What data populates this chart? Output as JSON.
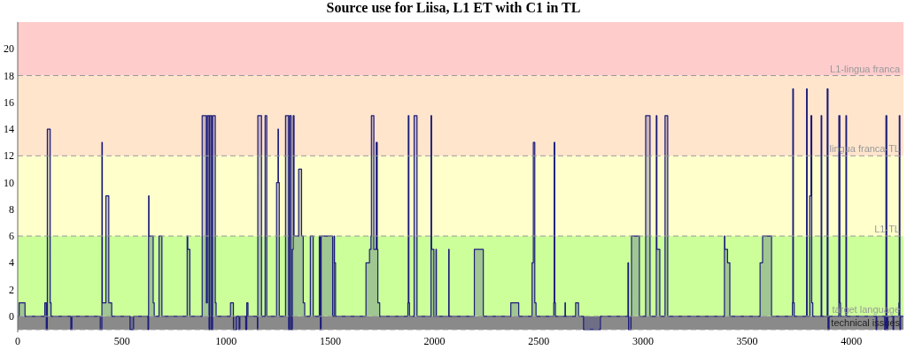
{
  "chart_data": {
    "type": "area",
    "title": "Source use for Liisa, L1 ET with C1 in TL",
    "xlim": [
      0,
      4250
    ],
    "xticks": [
      0,
      500,
      1000,
      1500,
      2000,
      2500,
      3000,
      3500,
      4000
    ],
    "ylim": [
      -1.2,
      22
    ],
    "yticks": [
      0,
      2,
      4,
      6,
      8,
      10,
      12,
      14,
      16,
      18,
      20
    ],
    "series": [
      {
        "color": "#1c1c7a",
        "x": [
          0,
          7,
          7,
          35,
          35,
          130,
          130,
          137,
          137,
          142,
          142,
          156,
          156,
          160,
          160,
          255,
          255,
          260,
          260,
          396,
          396,
          404,
          404,
          406,
          406,
          423,
          423,
          437,
          437,
          451,
          451,
          539,
          539,
          556,
          556,
          625,
          625,
          628,
          628,
          630,
          630,
          650,
          650,
          655,
          655,
          678,
          678,
          692,
          692,
          813,
          813,
          816,
          816,
          826,
          826,
          885,
          885,
          905,
          905,
          910,
          910,
          918,
          918,
          922,
          922,
          930,
          930,
          935,
          935,
          948,
          948,
          952,
          952,
          1021,
          1021,
          1035,
          1035,
          1050,
          1050,
          1062,
          1062,
          1066,
          1066,
          1094,
          1094,
          1099,
          1099,
          1105,
          1105,
          1150,
          1150,
          1152,
          1152,
          1170,
          1170,
          1187,
          1187,
          1195,
          1195,
          1242,
          1242,
          1249,
          1249,
          1251,
          1251,
          1255,
          1255,
          1285,
          1285,
          1300,
          1300,
          1305,
          1305,
          1312,
          1312,
          1318,
          1318,
          1322,
          1322,
          1326,
          1326,
          1348,
          1348,
          1362,
          1362,
          1370,
          1370,
          1377,
          1377,
          1404,
          1404,
          1418,
          1418,
          1447,
          1447,
          1452,
          1452,
          1456,
          1456,
          1511,
          1511,
          1518,
          1518,
          1520,
          1520,
          1525,
          1525,
          1671,
          1671,
          1688,
          1688,
          1695,
          1695,
          1697,
          1697,
          1709,
          1709,
          1720,
          1720,
          1725,
          1725,
          1728,
          1728,
          1737,
          1737,
          1872,
          1872,
          1874,
          1874,
          1877,
          1877,
          1880,
          1880,
          1902,
          1902,
          1916,
          1916,
          1983,
          1983,
          1986,
          1986,
          1997,
          1997,
          2007,
          2007,
          2009,
          2009,
          2068,
          2068,
          2070,
          2070,
          2191,
          2191,
          2234,
          2234,
          2366,
          2366,
          2404,
          2404,
          2468,
          2468,
          2474,
          2474,
          2481,
          2481,
          2487,
          2487,
          2572,
          2572,
          2574,
          2574,
          2577,
          2577,
          2580,
          2580,
          2626,
          2626,
          2628,
          2628,
          2677,
          2677,
          2691,
          2691,
          2715,
          2715,
          2796,
          2796,
          2928,
          2928,
          2931,
          2931,
          2943,
          2943,
          2945,
          2945,
          2983,
          2983,
          3013,
          3013,
          3034,
          3034,
          3064,
          3064,
          3067,
          3067,
          3081,
          3081,
          3106,
          3106,
          3119,
          3119,
          3391,
          3391,
          3393,
          3393,
          3406,
          3406,
          3417,
          3417,
          3562,
          3562,
          3574,
          3574,
          3617,
          3617,
          3717,
          3717,
          3719,
          3719,
          3722,
          3722,
          3726,
          3726,
          3785,
          3785,
          3788,
          3788,
          3800,
          3800,
          3806,
          3806,
          3810,
          3810,
          3815,
          3815,
          3855,
          3855,
          3858,
          3858,
          3884,
          3884,
          3888,
          3888,
          3893,
          3893,
          3940,
          3940,
          3945,
          3945,
          3948,
          3948,
          3974,
          3974,
          3977,
          3977,
          4119,
          4119,
          4122,
          4122,
          4160,
          4160,
          4166,
          4166,
          4170,
          4170,
          4175,
          4175,
          4200,
          4200,
          4203,
          4203,
          4228,
          4228,
          4230,
          4230,
          4233,
          4233,
          4236,
          4236,
          4250
        ],
        "values": [
          0,
          0,
          1,
          1,
          0,
          0,
          1,
          1,
          -1,
          -1,
          14,
          14,
          1,
          1,
          0,
          0,
          -1,
          -1,
          0,
          0,
          -1,
          -1,
          13,
          13,
          1,
          1,
          9,
          9,
          1,
          1,
          0,
          0,
          -1,
          -1,
          0,
          0,
          -1,
          -1,
          9,
          9,
          6,
          6,
          1,
          1,
          0,
          0,
          6,
          6,
          0,
          0,
          6,
          6,
          5,
          5,
          0,
          0,
          15,
          15,
          1,
          1,
          15,
          15,
          -1,
          -1,
          15,
          15,
          -1,
          -1,
          15,
          15,
          1,
          1,
          0,
          0,
          1,
          1,
          -1,
          -1,
          0,
          0,
          -1,
          -1,
          0,
          0,
          -1,
          -1,
          1,
          1,
          0,
          0,
          -1,
          -1,
          15,
          15,
          0,
          0,
          15,
          15,
          0,
          0,
          10,
          10,
          14,
          14,
          10,
          10,
          0,
          0,
          15,
          15,
          -1,
          -1,
          15,
          15,
          -1,
          -1,
          5,
          5,
          15,
          15,
          6,
          6,
          11,
          11,
          6,
          6,
          1,
          1,
          0,
          0,
          6,
          6,
          0,
          0,
          6,
          6,
          -1,
          -1,
          6,
          6,
          0,
          0,
          6,
          6,
          4,
          4,
          0,
          0,
          4,
          4,
          5,
          5,
          6,
          6,
          15,
          15,
          5,
          5,
          13,
          13,
          5,
          5,
          1,
          1,
          0,
          0,
          1,
          1,
          15,
          15,
          1,
          1,
          0,
          0,
          15,
          15,
          0,
          0,
          15,
          15,
          5,
          5,
          0,
          0,
          5,
          5,
          0,
          0,
          5,
          5,
          0,
          0,
          5,
          5,
          0,
          0,
          1,
          1,
          0,
          0,
          4,
          4,
          13,
          13,
          1,
          1,
          0,
          0,
          1,
          1,
          13,
          13,
          1,
          1,
          0,
          0,
          1,
          1,
          0,
          0,
          1,
          1,
          0,
          0,
          -1,
          -1,
          0,
          0,
          4,
          4,
          -1,
          -1,
          0,
          0,
          6,
          6,
          0,
          0,
          15,
          15,
          0,
          0,
          15,
          15,
          5,
          5,
          0,
          0,
          15,
          15,
          0,
          0,
          6,
          6,
          5,
          5,
          4,
          4,
          0,
          0,
          4,
          4,
          6,
          6,
          0,
          0,
          1,
          1,
          17,
          17,
          1,
          1,
          0,
          0,
          17,
          17,
          0,
          0,
          9,
          9,
          15,
          15,
          1,
          1,
          0,
          0,
          15,
          15,
          0,
          0,
          17,
          17,
          -1,
          -1,
          0,
          0,
          15,
          15,
          1,
          1,
          0,
          0,
          15,
          15,
          0,
          0,
          -1,
          -1,
          0,
          0,
          -1,
          -1,
          15,
          15,
          -1,
          -1,
          0,
          0,
          -1,
          -1,
          0,
          0,
          1,
          1,
          15,
          15,
          -1,
          -1,
          0,
          0
        ]
      }
    ],
    "bands": [
      {
        "axis": "y",
        "from": -1,
        "to": 0,
        "color": "#8a8a8a"
      },
      {
        "axis": "y",
        "from": 0,
        "to": 6,
        "color": "#ccff99"
      },
      {
        "axis": "y",
        "from": 6,
        "to": 12,
        "color": "#ffffcc"
      },
      {
        "axis": "y",
        "from": 12,
        "to": 18,
        "color": "#ffe5cc"
      },
      {
        "axis": "y",
        "from": 18,
        "to": 22,
        "color": "#ffcccc"
      }
    ],
    "ref_lines": [
      {
        "axis": "y",
        "value": 18,
        "label": "L1-lingua franca",
        "line_style": "dashed"
      },
      {
        "axis": "y",
        "value": 12,
        "label": "lingua franca-TL",
        "line_style": "dashed"
      },
      {
        "axis": "y",
        "value": 6,
        "label": "L1-TL",
        "line_style": "dashed"
      },
      {
        "axis": "y",
        "value": 0,
        "label": "target language",
        "line_style": "dashed"
      },
      {
        "axis": "y",
        "value": -1,
        "label": "technical issues",
        "line_style": "dashed"
      }
    ],
    "grid": false
  }
}
